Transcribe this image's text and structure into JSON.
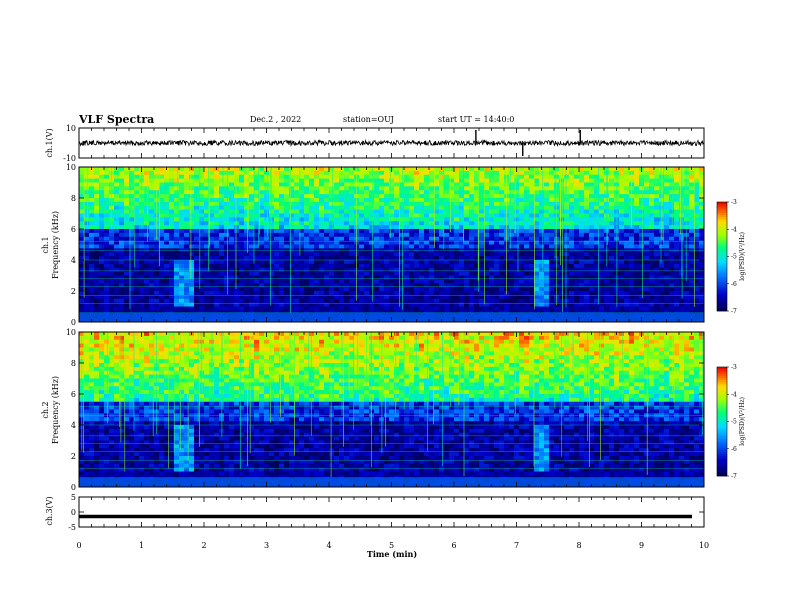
{
  "header": {
    "title": "VLF Spectra",
    "date": "Dec.2 , 2022",
    "station": "station=OUJ",
    "start_ut": "start UT = 14:40:0"
  },
  "colors": {
    "background": "#ffffff",
    "axis": "#000000",
    "spectrogram_dark": "#000050",
    "spectrogram_mid": "#00c8ff",
    "spectrogram_high": "#ff2000"
  },
  "chart_data": [
    {
      "type": "line",
      "panel": "ch1_waveform",
      "ylabel": "ch.1(V)",
      "ylim": [
        -10,
        10
      ],
      "yticks": [
        "10",
        "-10"
      ],
      "baseline": 0,
      "spikes_min": [
        6.35,
        7.1,
        8.02
      ],
      "xlim": [
        0,
        10
      ]
    },
    {
      "type": "heatmap",
      "panel": "ch1_spectrogram",
      "ylabel_line1": "ch.1",
      "ylabel_line2": "Frequency (kHz)",
      "ylim": [
        0,
        10
      ],
      "yticks": [
        "0",
        "2",
        "4",
        "6",
        "8",
        "10"
      ],
      "xlim": [
        0,
        10
      ],
      "colorbar": {
        "label": "log(PSD)(V²/Hz)",
        "range": [
          -7,
          -3
        ],
        "ticks": [
          "-3",
          "-4",
          "-5",
          "-6",
          "-7"
        ]
      },
      "features": {
        "high_band_top_khz": 10,
        "high_band_bottom_khz": 6,
        "enhanced_minutes": [
          1.65,
          7.4
        ]
      }
    },
    {
      "type": "heatmap",
      "panel": "ch2_spectrogram",
      "ylabel_line1": "ch.2",
      "ylabel_line2": "Frequency (kHz)",
      "ylim": [
        0,
        10
      ],
      "yticks": [
        "0",
        "2",
        "4",
        "6",
        "8",
        "10"
      ],
      "xlim": [
        0,
        10
      ],
      "colorbar": {
        "label": "log(PSD)(V²/Hz)",
        "range": [
          -7,
          -3
        ],
        "ticks": [
          "-3",
          "-4",
          "-5",
          "-6",
          "-7"
        ]
      },
      "features": {
        "high_band_top_khz": 10,
        "high_band_bottom_khz": 5.5,
        "enhanced_minutes": [
          1.65,
          7.4
        ]
      }
    },
    {
      "type": "line",
      "panel": "ch3_waveform",
      "ylabel": "ch.3(V)",
      "ylim": [
        -5,
        5
      ],
      "yticks": [
        "5",
        "0",
        "-5"
      ],
      "baseline": -1.5,
      "xlim": [
        0,
        10
      ],
      "xlabel": "Time (min)",
      "xticks": [
        "0",
        "1",
        "2",
        "3",
        "4",
        "5",
        "6",
        "7",
        "8",
        "9",
        "10"
      ]
    }
  ]
}
